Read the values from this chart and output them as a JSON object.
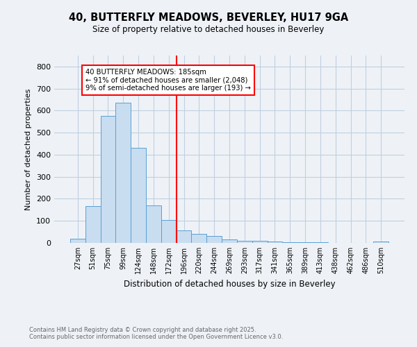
{
  "title": "40, BUTTERFLY MEADOWS, BEVERLEY, HU17 9GA",
  "subtitle": "Size of property relative to detached houses in Beverley",
  "xlabel": "Distribution of detached houses by size in Beverley",
  "ylabel": "Number of detached properties",
  "categories": [
    "27sqm",
    "51sqm",
    "75sqm",
    "99sqm",
    "124sqm",
    "148sqm",
    "172sqm",
    "196sqm",
    "220sqm",
    "244sqm",
    "269sqm",
    "293sqm",
    "317sqm",
    "341sqm",
    "365sqm",
    "389sqm",
    "413sqm",
    "438sqm",
    "462sqm",
    "486sqm",
    "510sqm"
  ],
  "values": [
    20,
    168,
    575,
    635,
    430,
    170,
    105,
    57,
    42,
    30,
    15,
    10,
    8,
    6,
    4,
    2,
    2,
    1,
    0,
    0,
    5
  ],
  "bar_color": "#c8ddf0",
  "bar_edge_color": "#5a9fd4",
  "vline_color": "red",
  "annotation_text": "40 BUTTERFLY MEADOWS: 185sqm\n← 91% of detached houses are smaller (2,048)\n9% of semi-detached houses are larger (193) →",
  "annotation_box_color": "white",
  "annotation_box_edge_color": "red",
  "ylim": [
    0,
    850
  ],
  "yticks": [
    0,
    100,
    200,
    300,
    400,
    500,
    600,
    700,
    800
  ],
  "footnote": "Contains HM Land Registry data © Crown copyright and database right 2025.\nContains public sector information licensed under the Open Government Licence v3.0.",
  "bg_color": "#eef2f7",
  "grid_color": "#c0cfe0"
}
